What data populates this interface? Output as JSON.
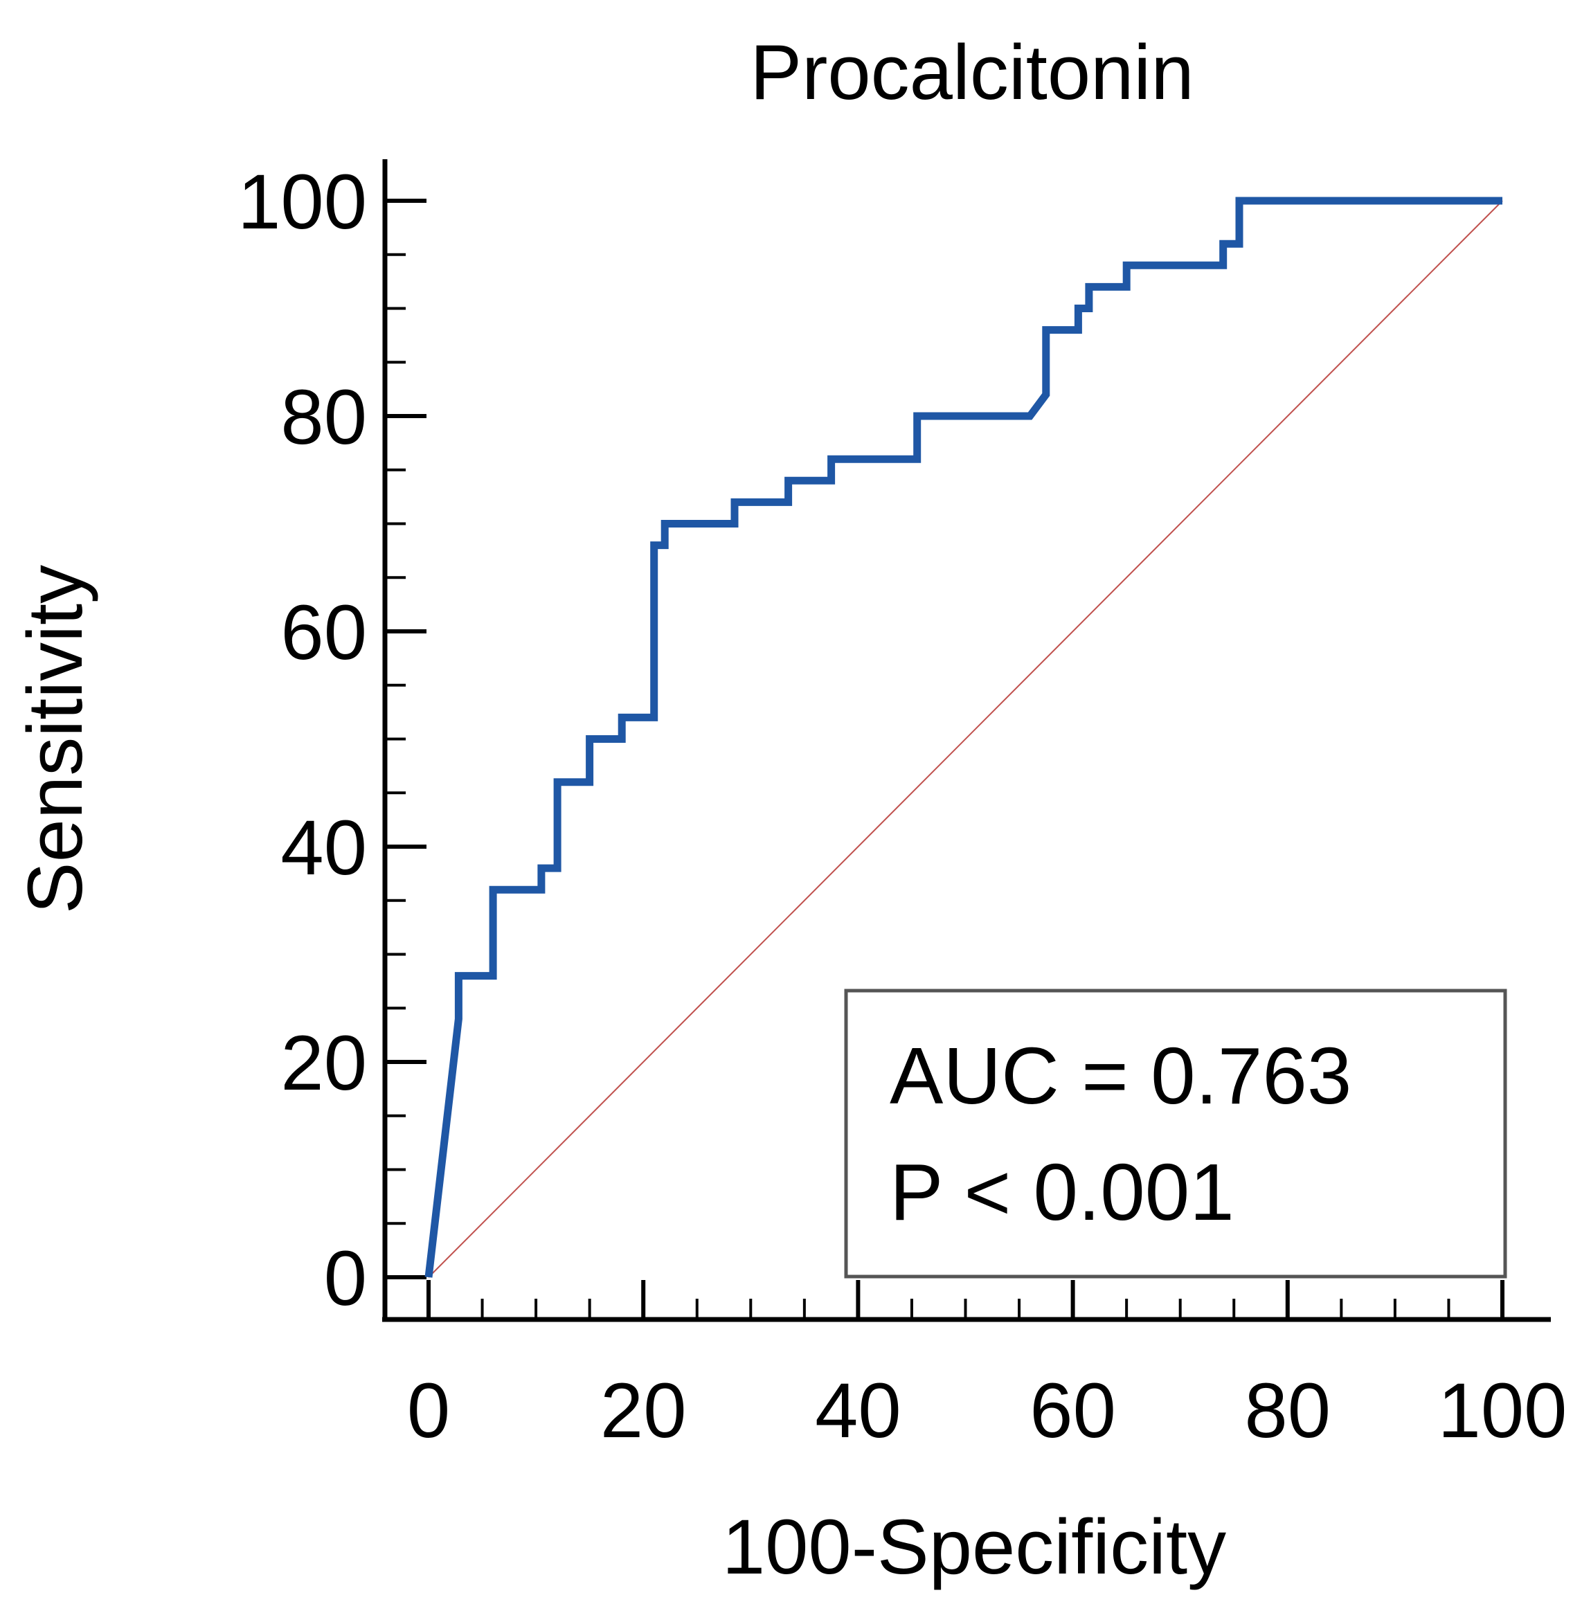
{
  "chart_data": {
    "type": "line",
    "title": "Procalcitonin",
    "xlabel": "100-Specificity",
    "ylabel": "Sensitivity",
    "xlim": [
      0,
      100
    ],
    "ylim": [
      0,
      100
    ],
    "x_ticks": [
      0,
      20,
      40,
      60,
      80,
      100
    ],
    "y_ticks": [
      0,
      20,
      40,
      60,
      80,
      100
    ],
    "x_tick_labels": [
      "0",
      "20",
      "40",
      "60",
      "80",
      "100"
    ],
    "y_tick_labels": [
      "0",
      "20",
      "40",
      "60",
      "80",
      "100"
    ],
    "minor_tick_step": 5,
    "series": [
      {
        "name": "ROC curve",
        "color": "#1f57a5",
        "x": [
          0,
          2.8,
          2.8,
          6,
          6,
          10.5,
          10.5,
          12,
          12,
          15,
          15,
          18,
          18,
          21,
          21,
          22,
          22,
          28.5,
          28.5,
          33.5,
          33.5,
          37.5,
          37.5,
          45.5,
          45.5,
          56,
          57.5,
          57.5,
          60.5,
          60.5,
          61.5,
          61.5,
          65,
          65,
          74,
          74,
          75.5,
          75.5,
          100
        ],
        "y": [
          0,
          24,
          28,
          28,
          36,
          36,
          38,
          38,
          46,
          46,
          50,
          50,
          52,
          52,
          68,
          68,
          70,
          70,
          72,
          72,
          74,
          74,
          76,
          76,
          80,
          80,
          82,
          88,
          88,
          90,
          90,
          92,
          92,
          94,
          94,
          96,
          96,
          100,
          100
        ]
      },
      {
        "name": "Reference line",
        "color": "#c0504d",
        "x": [
          0,
          100
        ],
        "y": [
          0,
          100
        ]
      }
    ],
    "annotation": {
      "auc_text": "AUC = 0.763",
      "p_text": "P < 0.001",
      "placement": "bottom-right"
    }
  }
}
